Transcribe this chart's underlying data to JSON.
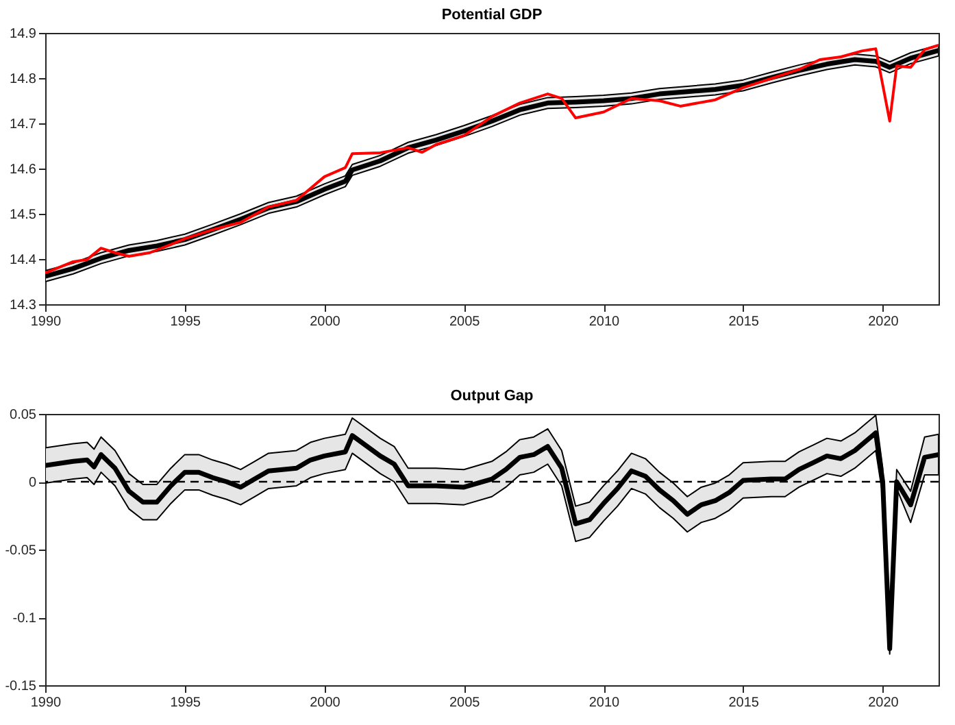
{
  "chart_data": [
    {
      "type": "line",
      "title": "Potential GDP",
      "xlim": [
        1990,
        2022
      ],
      "xticks": [
        1990,
        1995,
        2000,
        2005,
        2010,
        2015,
        2020
      ],
      "ylim": [
        14.3,
        14.9
      ],
      "yticks": [
        14.3,
        14.4,
        14.5,
        14.6,
        14.7,
        14.8,
        14.9
      ],
      "grid": false,
      "series": [
        {
          "color": "#000000",
          "x": [
            1990,
            1991,
            1992,
            1993,
            1994,
            1995,
            1996,
            1997,
            1998,
            1999,
            2000,
            2000.75,
            2001,
            2002,
            2003,
            2004,
            2005,
            2006,
            2007,
            2008,
            2009,
            2010,
            2011,
            2012,
            2013,
            2014,
            2015,
            2016,
            2017,
            2018,
            2019,
            2019.75,
            2020.25,
            2021,
            2022
          ],
          "values": [
            14.362,
            14.379,
            14.402,
            14.419,
            14.429,
            14.443,
            14.465,
            14.488,
            14.513,
            14.527,
            14.554,
            14.572,
            14.597,
            14.617,
            14.646,
            14.663,
            14.683,
            14.705,
            14.73,
            14.745,
            14.747,
            14.75,
            14.755,
            14.765,
            14.77,
            14.775,
            14.784,
            14.801,
            14.817,
            14.831,
            14.841,
            14.837,
            14.824,
            14.844,
            14.861
          ],
          "upper": [
            14.374,
            14.391,
            14.414,
            14.431,
            14.441,
            14.455,
            14.477,
            14.5,
            14.525,
            14.539,
            14.566,
            14.584,
            14.609,
            14.629,
            14.658,
            14.675,
            14.695,
            14.717,
            14.742,
            14.757,
            14.759,
            14.762,
            14.767,
            14.777,
            14.782,
            14.787,
            14.796,
            14.813,
            14.829,
            14.843,
            14.853,
            14.849,
            14.836,
            14.856,
            14.873
          ],
          "lower": [
            14.35,
            14.367,
            14.39,
            14.407,
            14.417,
            14.431,
            14.453,
            14.476,
            14.501,
            14.515,
            14.542,
            14.56,
            14.585,
            14.605,
            14.634,
            14.651,
            14.671,
            14.693,
            14.718,
            14.733,
            14.735,
            14.738,
            14.743,
            14.753,
            14.758,
            14.763,
            14.772,
            14.789,
            14.805,
            14.819,
            14.829,
            14.825,
            14.812,
            14.832,
            14.849
          ]
        },
        {
          "color": "#ff0000",
          "x": [
            1990,
            1991,
            1991.5,
            1992,
            1992.5,
            1993,
            1993.75,
            1994.5,
            1995,
            1996,
            1997,
            1998,
            1999,
            2000,
            2000.75,
            2001,
            2002,
            2003,
            2003.5,
            2004,
            2005,
            2006,
            2007,
            2008,
            2008.5,
            2009,
            2010,
            2011,
            2012,
            2012.75,
            2014,
            2015,
            2016,
            2017,
            2017.75,
            2018.5,
            2019.25,
            2019.75,
            2020.25,
            2020.5,
            2021,
            2021.5,
            2022
          ],
          "values": [
            14.369,
            14.394,
            14.399,
            14.424,
            14.414,
            14.406,
            14.414,
            14.432,
            14.445,
            14.465,
            14.481,
            14.515,
            14.53,
            14.582,
            14.602,
            14.633,
            14.635,
            14.646,
            14.636,
            14.653,
            14.673,
            14.715,
            14.745,
            14.765,
            14.755,
            14.712,
            14.725,
            14.755,
            14.75,
            14.738,
            14.752,
            14.779,
            14.799,
            14.819,
            14.841,
            14.847,
            14.86,
            14.865,
            14.705,
            14.827,
            14.824,
            14.863,
            14.873
          ]
        }
      ]
    },
    {
      "type": "line",
      "title": "Output Gap",
      "xlim": [
        1990,
        2022
      ],
      "xticks": [
        1990,
        1995,
        2000,
        2005,
        2010,
        2015,
        2020
      ],
      "ylim": [
        -0.15,
        0.05
      ],
      "yticks": [
        -0.15,
        -0.1,
        -0.05,
        0,
        0.05
      ],
      "grid": false,
      "ref_lines": [
        {
          "axis": "y",
          "value": 0,
          "line_style": "dashed",
          "color": "#000000"
        }
      ],
      "series": [
        {
          "color": "#000000",
          "x": [
            1990,
            1991,
            1991.5,
            1991.75,
            1992,
            1992.5,
            1993,
            1993.5,
            1994,
            1994.5,
            1995,
            1995.5,
            1996,
            1996.5,
            1997,
            1997.5,
            1998,
            1998.5,
            1999,
            1999.5,
            2000,
            2000.75,
            2001,
            2002,
            2002.5,
            2003,
            2004,
            2005,
            2006,
            2006.5,
            2007,
            2007.5,
            2008,
            2008.5,
            2009,
            2009.5,
            2010,
            2010.5,
            2011,
            2011.5,
            2012,
            2012.5,
            2013,
            2013.5,
            2014,
            2014.5,
            2015,
            2016,
            2016.5,
            2017,
            2017.5,
            2018,
            2018.5,
            2019,
            2019.75,
            2020,
            2020.25,
            2020.5,
            2021,
            2021.5,
            2022
          ],
          "values": [
            0.012,
            0.015,
            0.016,
            0.011,
            0.02,
            0.01,
            -0.007,
            -0.015,
            -0.015,
            -0.003,
            0.007,
            0.007,
            0.003,
            0.0,
            -0.004,
            0.002,
            0.008,
            0.009,
            0.01,
            0.016,
            0.019,
            0.022,
            0.034,
            0.019,
            0.013,
            -0.003,
            -0.003,
            -0.004,
            0.002,
            0.009,
            0.018,
            0.02,
            0.026,
            0.01,
            -0.031,
            -0.028,
            -0.016,
            -0.005,
            0.008,
            0.004,
            -0.006,
            -0.014,
            -0.024,
            -0.017,
            -0.014,
            -0.008,
            0.001,
            0.002,
            0.002,
            0.009,
            0.014,
            0.019,
            0.017,
            0.023,
            0.036,
            0.0,
            -0.123,
            0.0,
            -0.017,
            0.018,
            0.02
          ],
          "upper": [
            0.025,
            0.028,
            0.029,
            0.024,
            0.033,
            0.023,
            0.006,
            -0.002,
            -0.002,
            0.01,
            0.02,
            0.02,
            0.016,
            0.013,
            0.009,
            0.015,
            0.021,
            0.022,
            0.023,
            0.029,
            0.032,
            0.035,
            0.047,
            0.032,
            0.026,
            0.01,
            0.01,
            0.009,
            0.015,
            0.022,
            0.031,
            0.033,
            0.039,
            0.023,
            -0.018,
            -0.015,
            -0.003,
            0.008,
            0.021,
            0.017,
            0.007,
            -0.001,
            -0.011,
            -0.004,
            -0.001,
            0.005,
            0.014,
            0.015,
            0.015,
            0.022,
            0.027,
            0.032,
            0.03,
            0.036,
            0.049,
            0.01,
            -0.116,
            0.009,
            -0.007,
            0.033,
            0.035
          ],
          "lower": [
            -0.001,
            0.002,
            0.003,
            -0.002,
            0.007,
            -0.003,
            -0.02,
            -0.028,
            -0.028,
            -0.016,
            -0.006,
            -0.006,
            -0.01,
            -0.013,
            -0.017,
            -0.011,
            -0.005,
            -0.004,
            -0.003,
            0.003,
            0.006,
            0.009,
            0.021,
            0.006,
            0.0,
            -0.016,
            -0.016,
            -0.017,
            -0.011,
            -0.004,
            0.005,
            0.007,
            0.013,
            -0.003,
            -0.044,
            -0.041,
            -0.029,
            -0.018,
            -0.005,
            -0.009,
            -0.019,
            -0.027,
            -0.037,
            -0.03,
            -0.027,
            -0.021,
            -0.012,
            -0.011,
            -0.011,
            -0.004,
            0.001,
            0.006,
            0.004,
            0.01,
            0.023,
            -0.01,
            -0.127,
            -0.005,
            -0.03,
            0.005,
            0.005
          ]
        }
      ]
    }
  ]
}
